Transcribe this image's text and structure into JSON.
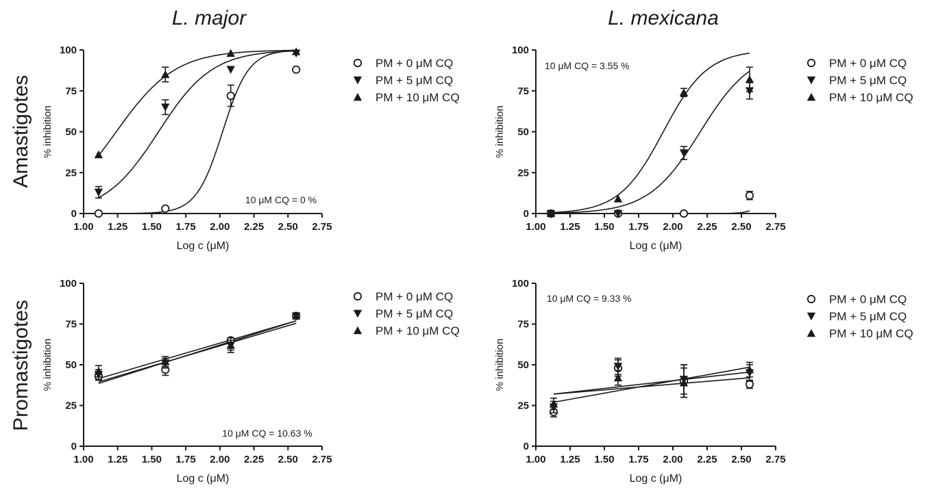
{
  "figure": {
    "column_titles": [
      "L. major",
      "L. mexicana"
    ],
    "row_titles": [
      "Amastigotes",
      "Promastigotes"
    ]
  },
  "chart_data": [
    {
      "type": "scatter",
      "title": "L. major",
      "row": "Amastigotes",
      "xlabel": "Log c (μM)",
      "ylabel": "% inhibition",
      "xlim": [
        1.0,
        2.75
      ],
      "ylim": [
        0,
        100
      ],
      "xticks": [
        "1.00",
        "1.25",
        "1.50",
        "1.75",
        "2.00",
        "2.25",
        "2.50",
        "2.75"
      ],
      "yticks": [
        "0",
        "25",
        "50",
        "75",
        "100"
      ],
      "annotation": "10 μM CQ = 0 %",
      "fit": "sigmoid",
      "series": [
        {
          "name": "PM + 0 μM CQ",
          "marker": "circle-open",
          "x": [
            1.11,
            1.6,
            2.08,
            2.56
          ],
          "y": [
            0,
            3,
            72,
            88
          ],
          "err": [
            0,
            0,
            6.5,
            0
          ],
          "fit_params": {
            "bottom": 0,
            "top": 100,
            "logec50": 2.02,
            "hill": 4.5
          }
        },
        {
          "name": "PM + 5 μM CQ",
          "marker": "triangle-down",
          "x": [
            1.11,
            1.6,
            2.08,
            2.56
          ],
          "y": [
            13,
            65,
            88,
            98
          ],
          "err": [
            3.5,
            4.5,
            0,
            0
          ],
          "fit_params": {
            "bottom": 0,
            "top": 100,
            "logec50": 1.55,
            "hill": 2.2
          }
        },
        {
          "name": "PM + 10 μM CQ",
          "marker": "triangle-up",
          "x": [
            1.11,
            1.6,
            2.08,
            2.56
          ],
          "y": [
            36,
            85,
            98,
            99
          ],
          "err": [
            0,
            4.5,
            0,
            0
          ],
          "fit_params": {
            "bottom": 0,
            "top": 100,
            "logec50": 1.24,
            "hill": 2.0
          }
        }
      ]
    },
    {
      "type": "scatter",
      "title": "L. mexicana",
      "row": "Amastigotes",
      "xlabel": "Log c (μM)",
      "ylabel": "% inhibition",
      "xlim": [
        1.0,
        2.75
      ],
      "ylim": [
        0,
        100
      ],
      "xticks": [
        "1.00",
        "1.25",
        "1.50",
        "1.75",
        "2.00",
        "2.25",
        "2.50",
        "2.75"
      ],
      "yticks": [
        "0",
        "25",
        "50",
        "75",
        "100"
      ],
      "annotation": "10 μM CQ = 3.55 %",
      "fit": "sigmoid",
      "series": [
        {
          "name": "PM + 0 μM CQ",
          "marker": "circle-open",
          "x": [
            1.11,
            1.6,
            2.08,
            2.56
          ],
          "y": [
            0,
            0,
            0,
            11
          ],
          "err": [
            1.5,
            0,
            0,
            2.5
          ],
          "fit_params": {
            "bottom": 0,
            "top": 100,
            "logec50": 2.78,
            "hill": 8.0
          }
        },
        {
          "name": "PM + 5 μM CQ",
          "marker": "triangle-down",
          "x": [
            1.11,
            1.6,
            2.08,
            2.56
          ],
          "y": [
            0,
            0,
            37,
            75
          ],
          "err": [
            1.5,
            0,
            4,
            5
          ],
          "fit_params": {
            "bottom": 0,
            "top": 100,
            "logec50": 2.2,
            "hill": 2.3
          }
        },
        {
          "name": "PM + 10 μM CQ",
          "marker": "triangle-up",
          "x": [
            1.11,
            1.6,
            2.08,
            2.56
          ],
          "y": [
            0,
            9,
            74,
            82
          ],
          "err": [
            1.5,
            0,
            2.5,
            7.5
          ],
          "fit_params": {
            "bottom": 0,
            "top": 100,
            "logec50": 1.93,
            "hill": 2.7
          }
        }
      ]
    },
    {
      "type": "scatter",
      "title": "L. major",
      "row": "Promastigotes",
      "xlabel": "Log c (μM)",
      "ylabel": "% inhibition",
      "xlim": [
        1.0,
        2.75
      ],
      "ylim": [
        0,
        100
      ],
      "xticks": [
        "1.00",
        "1.25",
        "1.50",
        "1.75",
        "2.00",
        "2.25",
        "2.50",
        "2.75"
      ],
      "yticks": [
        "0",
        "25",
        "50",
        "75",
        "100"
      ],
      "annotation": "10 μM CQ  = 10.63 %",
      "fit": "linear",
      "series": [
        {
          "name": "PM + 0 μM CQ",
          "marker": "circle-open",
          "x": [
            1.11,
            1.6,
            2.08,
            2.56
          ],
          "y": [
            43,
            47,
            65,
            80
          ],
          "err": [
            2.5,
            3.5,
            0,
            0
          ],
          "line": [
            [
              1.11,
              39.5
            ],
            [
              2.56,
              75.5
            ]
          ]
        },
        {
          "name": "PM + 5 μM CQ",
          "marker": "triangle-down",
          "x": [
            1.11,
            1.6,
            2.08,
            2.56
          ],
          "y": [
            44,
            51,
            62,
            80
          ],
          "err": [
            3,
            3,
            3,
            1.5
          ],
          "line": [
            [
              1.11,
              38.5
            ],
            [
              2.56,
              77
            ]
          ]
        },
        {
          "name": "PM + 10 μM CQ",
          "marker": "triangle-up",
          "x": [
            1.11,
            1.6,
            2.08,
            2.56
          ],
          "y": [
            46,
            52,
            62,
            80
          ],
          "err": [
            3.5,
            3,
            4.5,
            1.5
          ],
          "line": [
            [
              1.11,
              41.5
            ],
            [
              2.56,
              77
            ]
          ]
        }
      ]
    },
    {
      "type": "scatter",
      "title": "L. mexicana",
      "row": "Promastigotes",
      "xlabel": "Log c (μM)",
      "ylabel": "% inhibition",
      "xlim": [
        1.0,
        2.75
      ],
      "ylim": [
        0,
        100
      ],
      "xticks": [
        "1.00",
        "1.25",
        "1.50",
        "1.75",
        "2.00",
        "2.25",
        "2.50",
        "2.75"
      ],
      "yticks": [
        "0",
        "25",
        "50",
        "75",
        "100"
      ],
      "annotation": "10 μM CQ = 9.33 %",
      "fit": "linear",
      "series": [
        {
          "name": "PM + 0 μM CQ",
          "marker": "circle-open",
          "x": [
            1.13,
            1.6,
            2.08,
            2.56
          ],
          "y": [
            21,
            48,
            40,
            38
          ],
          "err": [
            3,
            5,
            10,
            2.5
          ],
          "line": [
            [
              1.13,
              32
            ],
            [
              2.56,
              42
            ]
          ]
        },
        {
          "name": "PM + 5 μM CQ",
          "marker": "triangle-down",
          "x": [
            1.13,
            1.6,
            2.08,
            2.56
          ],
          "y": [
            24,
            49,
            41,
            45
          ],
          "err": [
            3.5,
            5,
            9,
            5
          ],
          "line": [
            [
              1.13,
              27
            ],
            [
              2.56,
              48.5
            ]
          ]
        },
        {
          "name": "PM + 10 μM CQ",
          "marker": "triangle-up",
          "x": [
            1.13,
            1.6,
            2.08,
            2.56
          ],
          "y": [
            26,
            42,
            39,
            47
          ],
          "err": [
            3.5,
            4.5,
            9,
            4.5
          ],
          "line": [
            [
              1.13,
              32
            ],
            [
              2.56,
              45.5
            ]
          ]
        }
      ]
    }
  ]
}
